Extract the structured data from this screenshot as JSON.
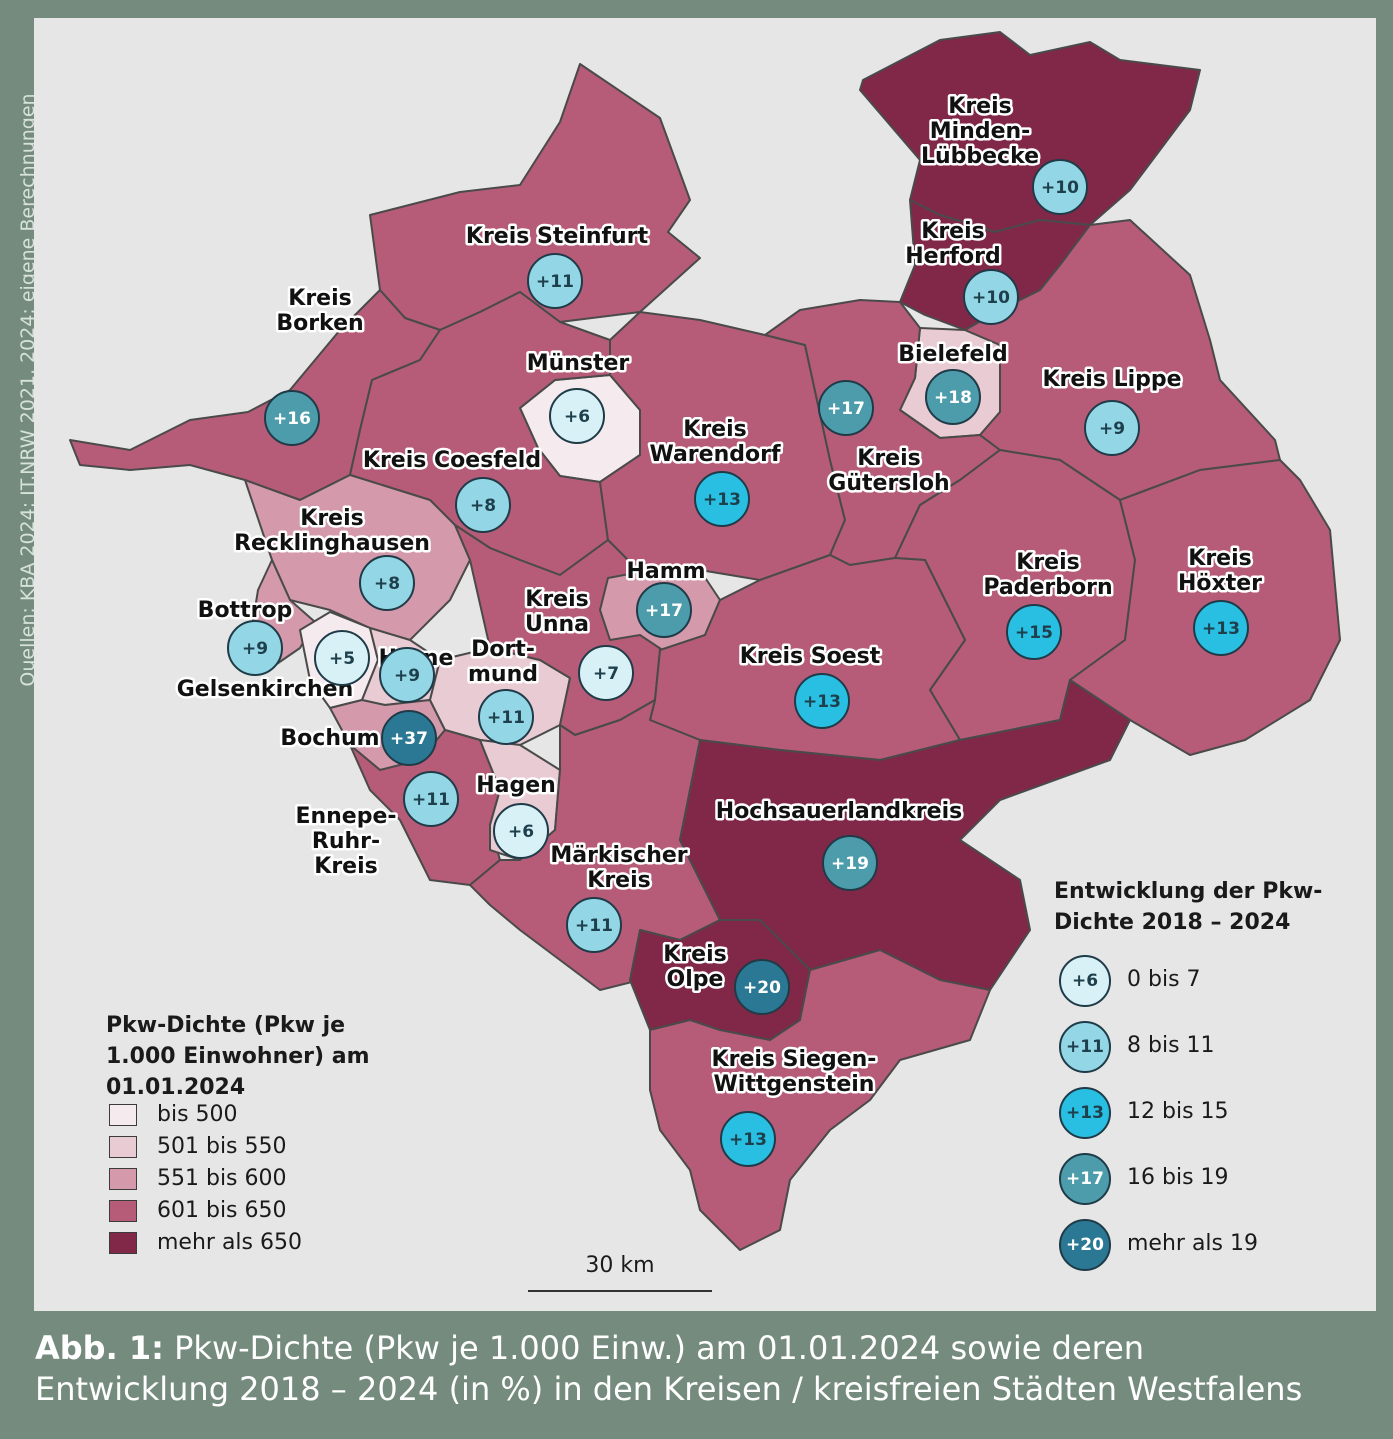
{
  "source_note": "Quellen: KBA 2024; IT.NRW 2021, 2024; eigene Berechnungen",
  "caption": {
    "lead": "Abb. 1:",
    "line1": "Pkw-Dichte (Pkw je 1.000 Einw.) am 01.01.2024 sowie deren",
    "line2": "Entwicklung 2018 – 2024 (in %) in den Kreisen / kreisfreien Städten Westfalens"
  },
  "colors": {
    "bis_500": "#f5eaee",
    "501_550": "#e9cbd4",
    "551_600": "#d49aac",
    "601_650": "#b65c79",
    "mehr_650": "#812848",
    "dev_0_7": "#d8f1f7",
    "dev_8_11": "#93d6e5",
    "dev_12_15": "#28bfe2",
    "dev_16_19": "#4c9cab",
    "dev_20": "#2b7894"
  },
  "density_legend": {
    "title_lines": [
      "Pkw-Dichte (Pkw je",
      "1.000 Einwohner) am",
      "01.01.2024"
    ],
    "items": [
      {
        "label": "bis 500",
        "color": "#f5eaee"
      },
      {
        "label": "501 bis 550",
        "color": "#e9cbd4"
      },
      {
        "label": "551 bis 600",
        "color": "#d49aac"
      },
      {
        "label": "601 bis 650",
        "color": "#b65c79"
      },
      {
        "label": "mehr als 650",
        "color": "#812848"
      }
    ]
  },
  "development_legend": {
    "title_lines": [
      "Entwicklung der Pkw-",
      "Dichte 2018 – 2024"
    ],
    "items": [
      {
        "sample": "+6",
        "label": "0 bis 7",
        "color": "#d8f1f7"
      },
      {
        "sample": "+11",
        "label": "8 bis 11",
        "color": "#93d6e5"
      },
      {
        "sample": "+13",
        "label": "12 bis 15",
        "color": "#28bfe2"
      },
      {
        "sample": "+17",
        "label": "16 bis 19",
        "color": "#4c9cab"
      },
      {
        "sample": "+20",
        "label": "mehr als 19",
        "color": "#2b7894"
      }
    ]
  },
  "scale_label": "30 km",
  "regions": [
    {
      "id": "steinfurt",
      "name_lines": [
        "Kreis Steinfurt"
      ],
      "density_class": "601 bis 650",
      "change": "+11"
    },
    {
      "id": "borken",
      "name_lines": [
        "Kreis",
        "Borken"
      ],
      "density_class": "601 bis 650",
      "change": "+16"
    },
    {
      "id": "muenster",
      "name_lines": [
        "Münster"
      ],
      "density_class": "bis 500",
      "change": "+6"
    },
    {
      "id": "coesfeld",
      "name_lines": [
        "Kreis Coesfeld"
      ],
      "density_class": "601 bis 650",
      "change": "+8"
    },
    {
      "id": "warendorf",
      "name_lines": [
        "Kreis",
        "Warendorf"
      ],
      "density_class": "601 bis 650",
      "change": "+13"
    },
    {
      "id": "minden",
      "name_lines": [
        "Kreis",
        "Minden-",
        "Lübbecke"
      ],
      "density_class": "mehr als 650",
      "change": "+10"
    },
    {
      "id": "herford",
      "name_lines": [
        "Kreis",
        "Herford"
      ],
      "density_class": "mehr als 650",
      "change": "+10"
    },
    {
      "id": "bielefeld",
      "name_lines": [
        "Bielefeld"
      ],
      "density_class": "501 bis 550",
      "change": "+18"
    },
    {
      "id": "guetersloh",
      "name_lines": [
        "Kreis",
        "Gütersloh"
      ],
      "density_class": "601 bis 650",
      "change": "+17"
    },
    {
      "id": "lippe",
      "name_lines": [
        "Kreis Lippe"
      ],
      "density_class": "601 bis 650",
      "change": "+9"
    },
    {
      "id": "paderborn",
      "name_lines": [
        "Kreis",
        "Paderborn"
      ],
      "density_class": "601 bis 650",
      "change": "+15"
    },
    {
      "id": "hoexter",
      "name_lines": [
        "Kreis",
        "Höxter"
      ],
      "density_class": "601 bis 650",
      "change": "+13"
    },
    {
      "id": "recklinghausen",
      "name_lines": [
        "Kreis",
        "Recklinghausen"
      ],
      "density_class": "551 bis 600",
      "change": "+8"
    },
    {
      "id": "bottrop",
      "name_lines": [
        "Bottrop"
      ],
      "density_class": "551 bis 600",
      "change": "+9"
    },
    {
      "id": "gelsenkirchen",
      "name_lines": [
        "Gelsenkirchen"
      ],
      "density_class": "bis 500",
      "change": "+5"
    },
    {
      "id": "herne",
      "name_lines": [
        "Herne"
      ],
      "density_class": "501 bis 550",
      "change": "+9"
    },
    {
      "id": "bochum",
      "name_lines": [
        "Bochum"
      ],
      "density_class": "551 bis 600",
      "change": "+37"
    },
    {
      "id": "dortmund",
      "name_lines": [
        "Dort-",
        "mund"
      ],
      "density_class": "501 bis 550",
      "change": "+11"
    },
    {
      "id": "unna",
      "name_lines": [
        "Kreis",
        "Unna"
      ],
      "density_class": "601 bis 650",
      "change": "+7"
    },
    {
      "id": "hamm",
      "name_lines": [
        "Hamm"
      ],
      "density_class": "551 bis 600",
      "change": "+17"
    },
    {
      "id": "soest",
      "name_lines": [
        "Kreis Soest"
      ],
      "density_class": "601 bis 650",
      "change": "+13"
    },
    {
      "id": "ennepe",
      "name_lines": [
        "Ennepe-",
        "Ruhr-",
        "Kreis"
      ],
      "density_class": "601 bis 650",
      "change": "+11"
    },
    {
      "id": "hagen",
      "name_lines": [
        "Hagen"
      ],
      "density_class": "501 bis 550",
      "change": "+6"
    },
    {
      "id": "maerkisch",
      "name_lines": [
        "Märkischer",
        "Kreis"
      ],
      "density_class": "601 bis 650",
      "change": "+11"
    },
    {
      "id": "hochsauerland",
      "name_lines": [
        "Hochsauerlandkreis"
      ],
      "density_class": "mehr als 650",
      "change": "+19"
    },
    {
      "id": "olpe",
      "name_lines": [
        "Kreis",
        "Olpe"
      ],
      "density_class": "mehr als 650",
      "change": "+20"
    },
    {
      "id": "siegen",
      "name_lines": [
        "Kreis Siegen-",
        "Wittgenstein"
      ],
      "density_class": "601 bis 650",
      "change": "+13"
    }
  ]
}
